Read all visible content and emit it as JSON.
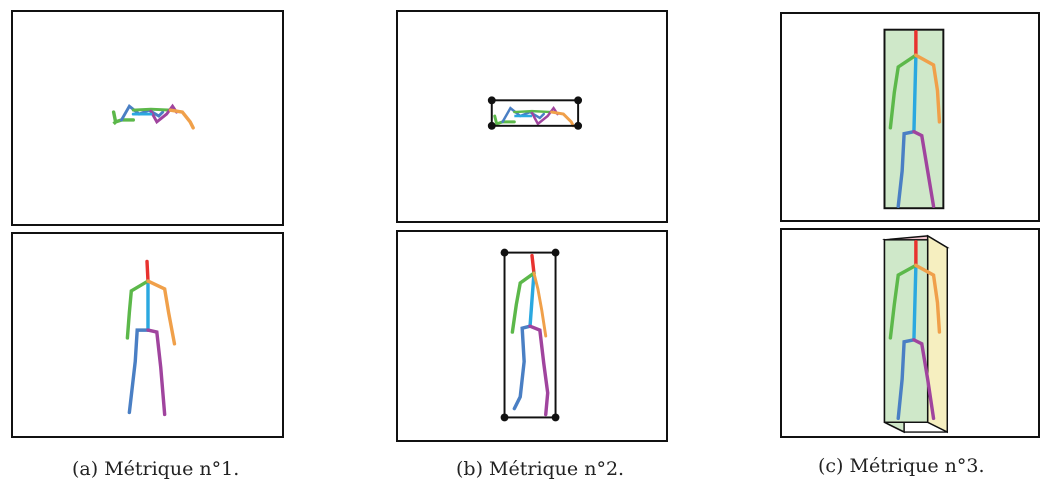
{
  "captions": {
    "a": "(a) Métrique n°1.",
    "b": "(b) Métrique n°2.",
    "c": "(c) Métrique n°3."
  },
  "colors": {
    "head": "#e8322f",
    "spine": "#2ba8e0",
    "left_arm": "#5cb84a",
    "right_arm": "#f0a04a",
    "left_leg": "#4a7fc4",
    "right_leg": "#a0449e",
    "box_outline": "#111111",
    "box_green_fill": "#cfe8c9",
    "box_pink_fill": "#f2c6cf",
    "box_yellow_fill": "#f6efc0"
  },
  "icons": [
    "skeleton-figure",
    "bounding-box-2d",
    "bounding-box-3d"
  ]
}
